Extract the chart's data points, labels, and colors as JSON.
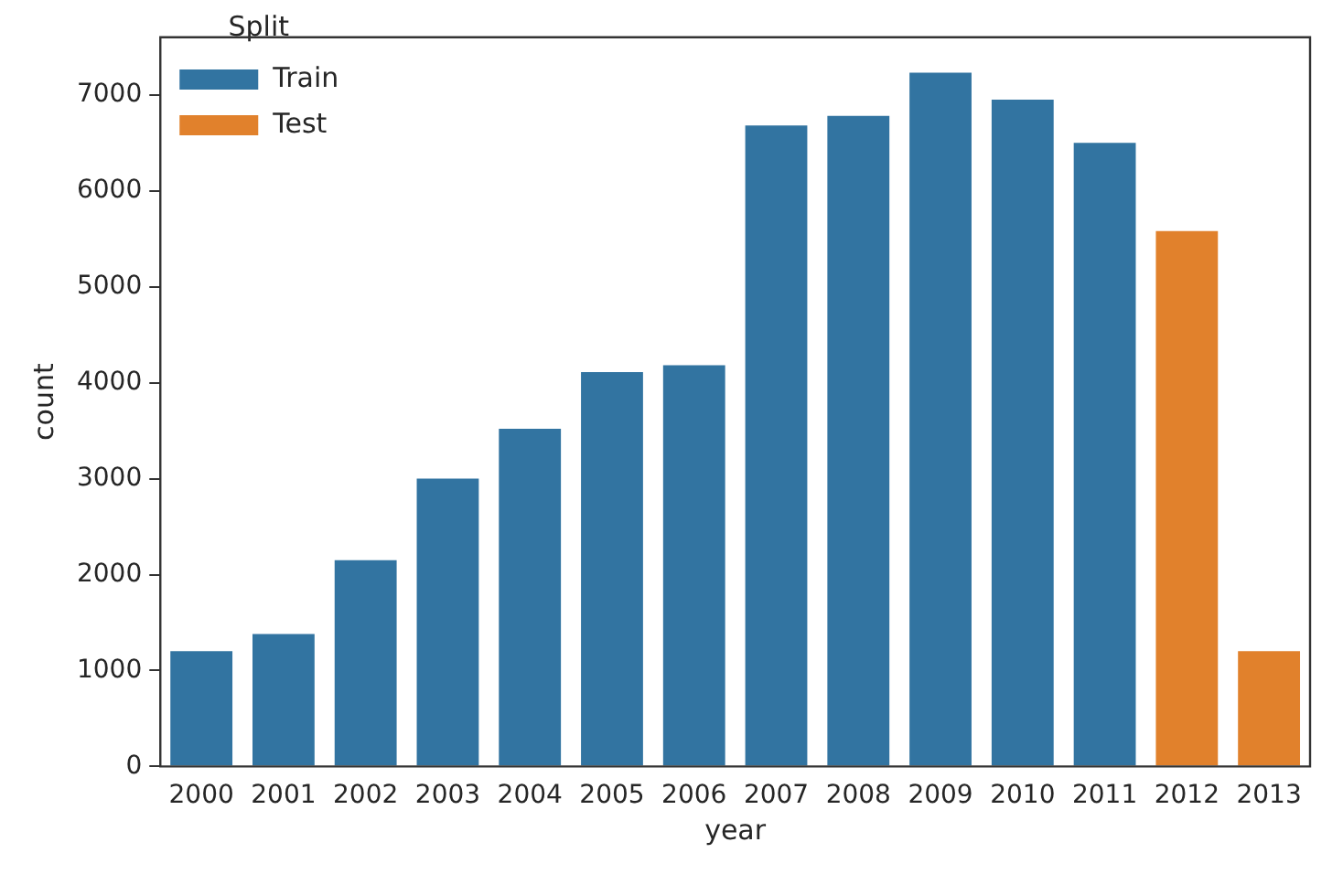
{
  "chart_data": {
    "type": "bar",
    "xlabel": "year",
    "ylabel": "count",
    "legend_title": "Split",
    "legend": "top left",
    "grid": false,
    "categories": [
      "2000",
      "2001",
      "2002",
      "2003",
      "2004",
      "2005",
      "2006",
      "2007",
      "2008",
      "2009",
      "2010",
      "2011",
      "2012",
      "2013"
    ],
    "series": [
      {
        "name": "Train",
        "color": "#3274a1",
        "values": [
          1220,
          1400,
          2170,
          3020,
          3540,
          4130,
          4200,
          6700,
          6800,
          7250,
          6970,
          6520,
          null,
          null
        ]
      },
      {
        "name": "Test",
        "color": "#e1812c",
        "values": [
          null,
          null,
          null,
          null,
          null,
          null,
          null,
          null,
          null,
          null,
          null,
          null,
          5600,
          1220
        ]
      }
    ],
    "ylim": [
      0,
      7600
    ],
    "yticks": [
      0,
      1000,
      2000,
      3000,
      4000,
      5000,
      6000,
      7000
    ]
  }
}
